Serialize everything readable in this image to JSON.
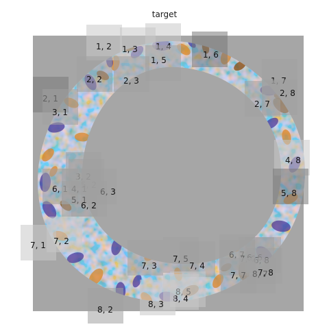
{
  "title": "target",
  "colors": {
    "background": "#a6a6a6",
    "orange": "#d9862a",
    "brown": "#8a4a0a",
    "purple": "#4b3a9a",
    "white": "#f4f2f7"
  },
  "tiles": [
    {
      "label": "1, 2",
      "shade": "light"
    },
    {
      "label": "1, 3",
      "shade": "light"
    },
    {
      "label": "1, 4",
      "shade": "light"
    },
    {
      "label": "1, 5",
      "shade": "mid"
    },
    {
      "label": "1, 6",
      "shade": "dark"
    },
    {
      "label": "1, 7",
      "shade": "mid"
    },
    {
      "label": "2, 8",
      "shade": "mid"
    },
    {
      "label": "2, 7",
      "shade": "mid"
    },
    {
      "label": "2, 1",
      "shade": "dark"
    },
    {
      "label": "2, 2",
      "shade": "mid"
    },
    {
      "label": "2, 3",
      "shade": "mid"
    },
    {
      "label": "3, 1",
      "shade": "mid"
    },
    {
      "label": "3, 2",
      "shade": "mid"
    },
    {
      "label": "4, 8",
      "shade": "light"
    },
    {
      "label": "5, 8",
      "shade": "dark"
    },
    {
      "label": "5, 2",
      "shade": "mid"
    },
    {
      "label": "6, 1",
      "shade": "mid"
    },
    {
      "label": "4, 1",
      "shade": "mid"
    },
    {
      "label": "6, 3",
      "shade": "mid"
    },
    {
      "label": "5, 1",
      "shade": "mid"
    },
    {
      "label": "6, 2",
      "shade": "mid"
    },
    {
      "label": "7, 1",
      "shade": "light"
    },
    {
      "label": "7, 2",
      "shade": "light"
    },
    {
      "label": "7, 3",
      "shade": "mid"
    },
    {
      "label": "7, 5",
      "shade": "mid"
    },
    {
      "label": "7, 4",
      "shade": "mid"
    },
    {
      "label": "6, 7",
      "shade": "mid"
    },
    {
      "label": "7, 6",
      "shade": "mid"
    },
    {
      "label": "6, 6",
      "shade": "mid"
    },
    {
      "label": "6, 8",
      "shade": "mid"
    },
    {
      "label": "7, 7",
      "shade": "mid"
    },
    {
      "label": "8, 7",
      "shade": "mid"
    },
    {
      "label": "7, 8",
      "shade": "mid"
    },
    {
      "label": "8, 5",
      "shade": "light"
    },
    {
      "label": "8, 4",
      "shade": "light"
    },
    {
      "label": "8, 3",
      "shade": "light"
    },
    {
      "label": "8, 2",
      "shade": "mid"
    }
  ]
}
